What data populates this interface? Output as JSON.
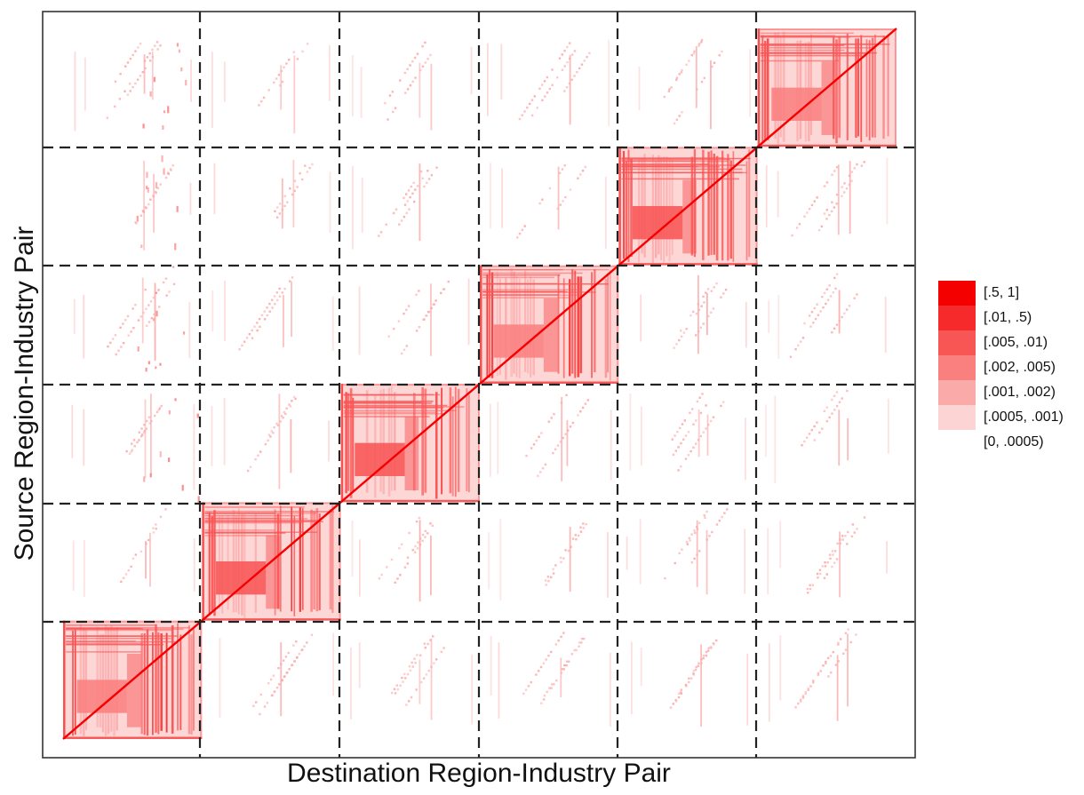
{
  "chart_data": {
    "type": "heatmap",
    "title": "",
    "xlabel": "Destination Region-Industry Pair",
    "ylabel": "Source Region-Industry Pair",
    "blocks": 6,
    "grid_lines": "dashed",
    "legend_position": "right",
    "legend": [
      {
        "label": "[.5, 1]",
        "color": "#f50000"
      },
      {
        "label": "[.01, .5)",
        "color": "#f62a2a"
      },
      {
        "label": "[.005, .01)",
        "color": "#f85555"
      },
      {
        "label": "[.002, .005)",
        "color": "#fa8080"
      },
      {
        "label": "[.001, .002)",
        "color": "#fbaaaa"
      },
      {
        "label": "[.0005, .001)",
        "color": "#fdd4d4"
      },
      {
        "label": "[0, .0005)",
        "color": "#ffffff"
      }
    ],
    "diagonal_blocks": [
      {
        "block": 1,
        "dominant_bin": "[.002, .005)"
      },
      {
        "block": 2,
        "dominant_bin": "[.005, .01)"
      },
      {
        "block": 3,
        "dominant_bin": "[.005, .01)"
      },
      {
        "block": 4,
        "dominant_bin": "[.002, .005)"
      },
      {
        "block": 5,
        "dominant_bin": "[.005, .01)"
      },
      {
        "block": 6,
        "dominant_bin": "[.002, .005)"
      }
    ],
    "off_diagonal_dominant_bin": "[.0005, .001)"
  }
}
